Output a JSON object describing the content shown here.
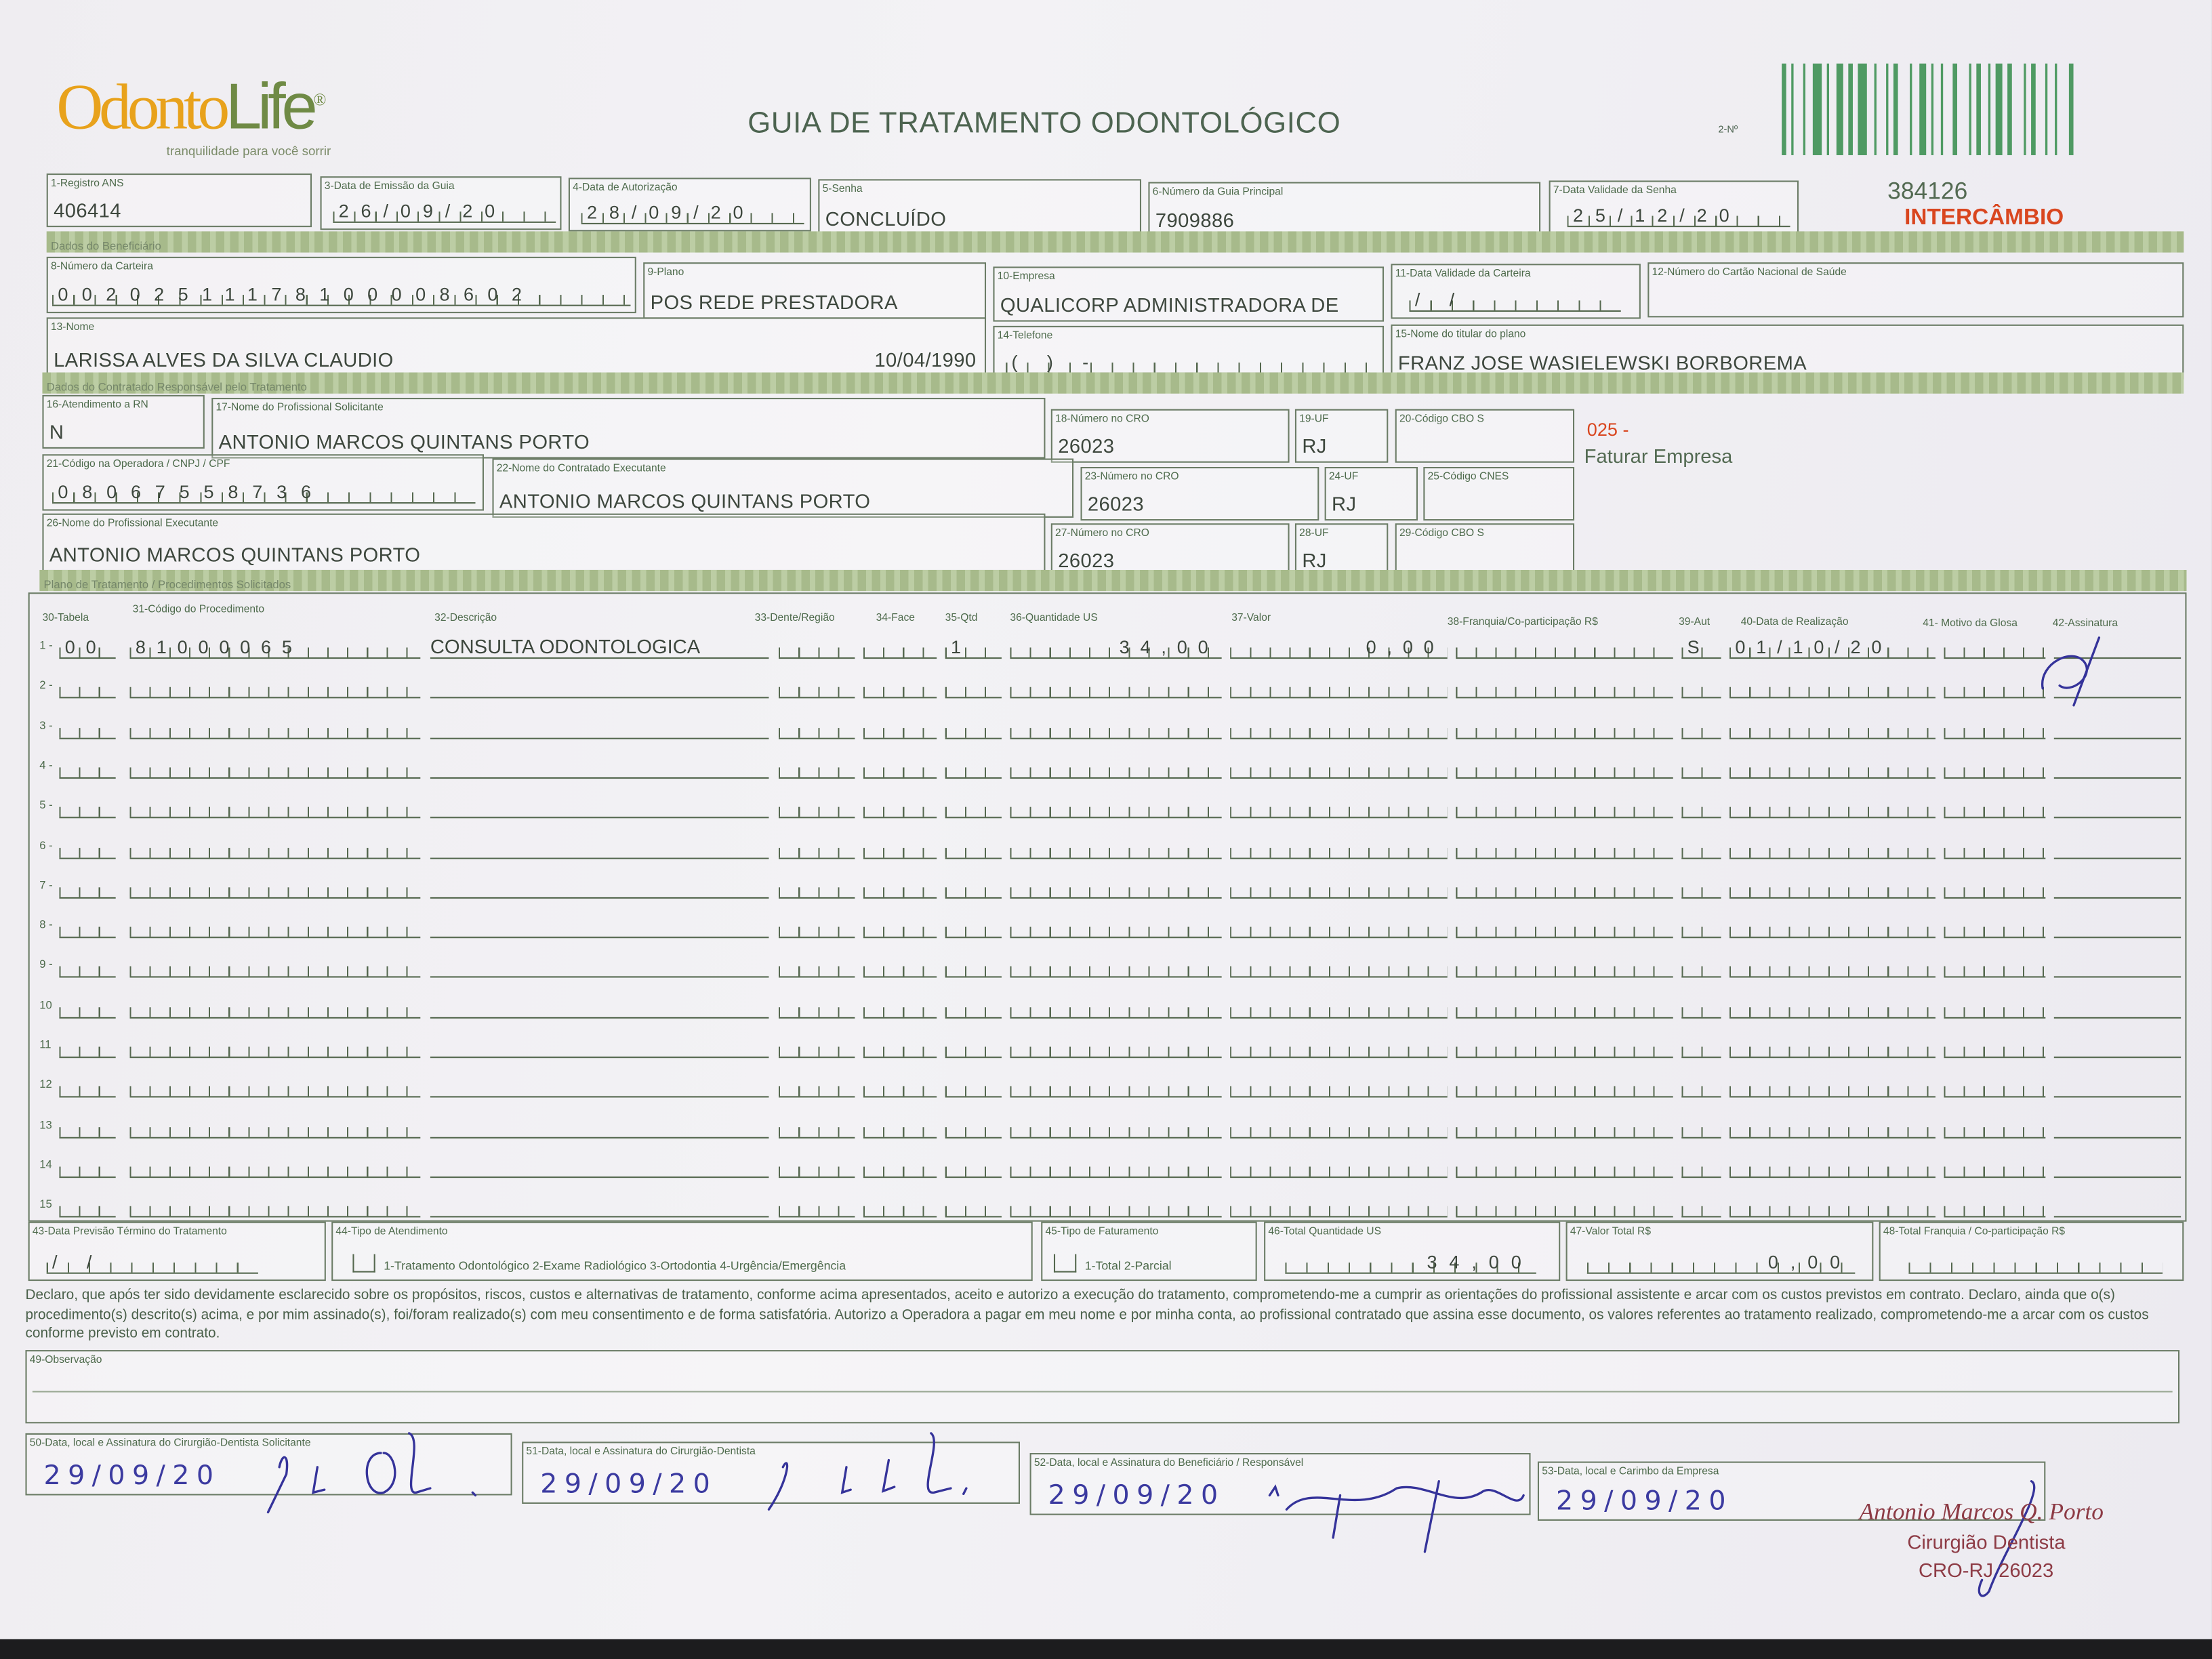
{
  "header": {
    "logo_text_a": "Odonto",
    "logo_text_b": "Life",
    "logo_mark": "®",
    "tagline": "tranquilidade para você sorrir",
    "title": "GUIA DE TRATAMENTO ODONTOLÓGICO",
    "guia_number_label": "2-Nº",
    "barcode_icon": "barcode",
    "reference_number": "384126",
    "intercambio": "INTERCÂMBIO",
    "faturar_code": "025 -",
    "faturar_label": "Faturar Empresa"
  },
  "colors": {
    "form_green": "#4d6a4b",
    "section_bar": "#a7ba8b",
    "logo_orange": "#e8a21c",
    "alert_red": "#d9461f",
    "ink_blue": "#35339a",
    "stamp": "#8d3b45"
  },
  "fields": {
    "f1": {
      "label": "1-Registro ANS",
      "value": "406414"
    },
    "f3": {
      "label": "3-Data de Emissão da Guia",
      "value": "26/09/20"
    },
    "f4": {
      "label": "4-Data de Autorização",
      "value": "28/09/20"
    },
    "f5": {
      "label": "5-Senha",
      "value": "CONCLUÍDO"
    },
    "f6": {
      "label": "6-Número da Guia Principal",
      "value": "7909886"
    },
    "f7": {
      "label": "7-Data Validade da Senha",
      "value": "25/12/20"
    },
    "f8": {
      "label": "8-Número da Carteira",
      "value": "00202511178100008602"
    },
    "f9": {
      "label": "9-Plano",
      "value": "POS REDE PRESTADORA"
    },
    "f10": {
      "label": "10-Empresa",
      "value": "QUALICORP ADMINISTRADORA DE"
    },
    "f11": {
      "label": "11-Data Validade da Carteira",
      "value": "  /  /  "
    },
    "f12": {
      "label": "12-Número do Cartão Nacional de Saúde",
      "value": ""
    },
    "f13": {
      "label": "13-Nome",
      "value": "LARISSA ALVES DA SILVA CLAUDIO",
      "birth": "10/04/1990"
    },
    "f14": {
      "label": "14-Telefone",
      "value": "(   )     -     "
    },
    "f15": {
      "label": "15-Nome do titular do plano",
      "value": "FRANZ JOSE WASIELEWSKI BORBOREMA"
    },
    "f16": {
      "label": "16-Atendimento a RN",
      "value": "N"
    },
    "f17": {
      "label": "17-Nome do Profissional Solicitante",
      "value": "ANTONIO MARCOS QUINTANS PORTO"
    },
    "f18": {
      "label": "18-Número no CRO",
      "value": "26023"
    },
    "f19": {
      "label": "19-UF",
      "value": "RJ"
    },
    "f20": {
      "label": "20-Código CBO S",
      "value": ""
    },
    "f21": {
      "label": "21-Código na Operadora / CNPJ / CPF",
      "value": "08067558736"
    },
    "f22": {
      "label": "22-Nome do Contratado Executante",
      "value": "ANTONIO MARCOS QUINTANS PORTO"
    },
    "f23": {
      "label": "23-Número no CRO",
      "value": "26023"
    },
    "f24": {
      "label": "24-UF",
      "value": "RJ"
    },
    "f25": {
      "label": "25-Código CNES",
      "value": ""
    },
    "f26": {
      "label": "26-Nome do Profissional Executante",
      "value": "ANTONIO MARCOS QUINTANS PORTO"
    },
    "f27": {
      "label": "27-Número no CRO",
      "value": "26023"
    },
    "f28": {
      "label": "28-UF",
      "value": "RJ"
    },
    "f29": {
      "label": "29-Código CBO S",
      "value": ""
    }
  },
  "sections": {
    "beneficiario": "Dados do Beneficiário",
    "contratado": "Dados do Contratado Responsável pelo Tratamento",
    "plano": "Plano de Tratamento / Procedimentos Solicitados"
  },
  "procedures": {
    "headers": {
      "tabela": "30-Tabela",
      "codigo": "31-Código do Procedimento",
      "descricao": "32-Descrição",
      "dente": "33-Dente/Região",
      "face": "34-Face",
      "qtd": "35-Qtd",
      "qtd_us": "36-Quantidade US",
      "valor": "37-Valor",
      "franquia": "38-Franquia/Co-participação R$",
      "aut": "39-Aut",
      "data": "40-Data de Realização",
      "glosa": "41- Motivo da Glosa",
      "assinatura": "42-Assinatura"
    },
    "rows": [
      {
        "n": "1 -",
        "tabela": "00",
        "codigo": "81000065",
        "descricao": "CONSULTA ODONTOLOGICA",
        "dente": "",
        "face": "",
        "qtd": "1",
        "qtd_us": "34,00",
        "valor": "0,00",
        "franquia": "",
        "aut": "S",
        "data": "01/10/20",
        "glosa": "",
        "assinatura": "signed"
      },
      {
        "n": "2 -"
      },
      {
        "n": "3 -"
      },
      {
        "n": "4 -"
      },
      {
        "n": "5 -"
      },
      {
        "n": "6 -"
      },
      {
        "n": "7 -"
      },
      {
        "n": "8 -"
      },
      {
        "n": "9 -"
      },
      {
        "n": "10"
      },
      {
        "n": "11"
      },
      {
        "n": "12"
      },
      {
        "n": "13"
      },
      {
        "n": "14"
      },
      {
        "n": "15"
      }
    ]
  },
  "footer": {
    "f43": {
      "label": "43-Data Previsão Término do Tratamento",
      "value": "  /  /  "
    },
    "f44": {
      "label": "44-Tipo de Atendimento",
      "options": "1-Tratamento Odontológico  2-Exame Radiológico  3-Ortodontia  4-Urgência/Emergência"
    },
    "f45": {
      "label": "45-Tipo de Faturamento",
      "options": "1-Total  2-Parcial"
    },
    "f46": {
      "label": "46-Total Quantidade US",
      "value": "34,00"
    },
    "f47": {
      "label": "47-Valor Total R$",
      "value": "0,00"
    },
    "f48": {
      "label": "48-Total Franquia / Co-participação R$",
      "value": ""
    },
    "declaration": "Declaro, que após ter sido devidamente esclarecido sobre os propósitos, riscos, custos e alternativas de tratamento, conforme acima apresentados, aceito e autorizo a execução do tratamento, comprometendo-me a cumprir as orientações do profissional assistente e arcar com os custos previstos em contrato. Declaro, ainda que o(s) procedimento(s) descrito(s) acima, e por mim assinado(s), foi/foram realizado(s) com meu consentimento e de forma satisfatória. Autorizo a Operadora a pagar em meu nome e por minha conta, ao profissional contratado que assina esse documento, os valores referentes ao tratamento realizado, comprometendo-me a arcar com os custos conforme previsto em contrato.",
    "f49": {
      "label": "49-Observação",
      "value": ""
    },
    "f50": {
      "label": "50-Data, local e Assinatura do Cirurgião-Dentista Solicitante",
      "date": "29/09/20"
    },
    "f51": {
      "label": "51-Data, local e Assinatura do Cirurgião-Dentista",
      "date": "29/09/20"
    },
    "f52": {
      "label": "52-Data, local e Assinatura do Beneficiário / Responsável",
      "date": "29/09/20"
    },
    "f53": {
      "label": "53-Data, local e Carimbo da Empresa",
      "date": "29/09/20"
    },
    "stamp": {
      "name": "Antonio Marcos Q. Porto",
      "role": "Cirurgião Dentista",
      "cro": "CRO-RJ 26023"
    }
  }
}
